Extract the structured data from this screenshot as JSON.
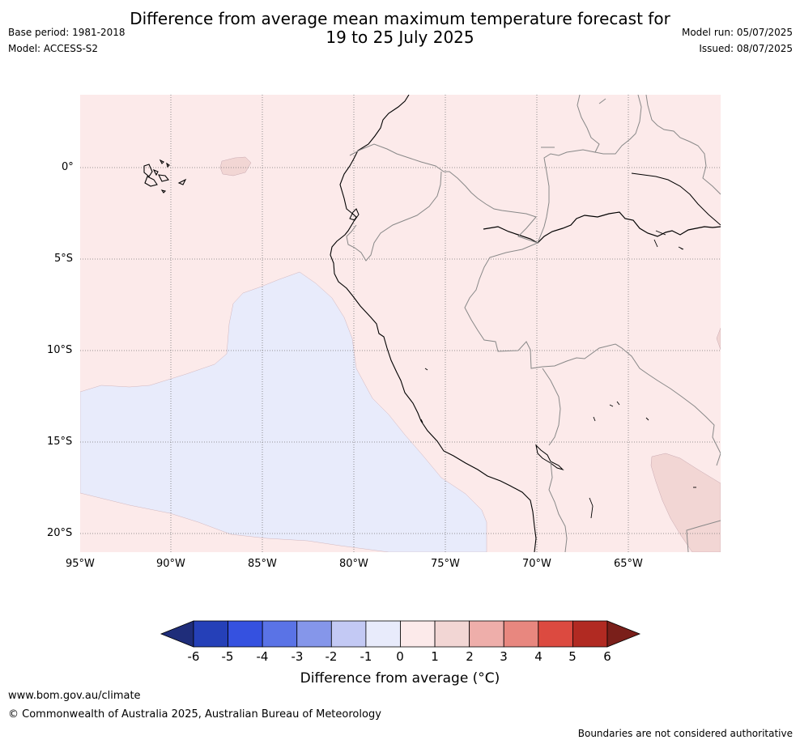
{
  "title": {
    "line1": "Difference from average mean maximum temperature forecast for",
    "line2": "19 to 25 July 2025"
  },
  "meta_left": {
    "base_period": "Base period: 1981-2018",
    "model": "Model: ACCESS-S2"
  },
  "meta_right": {
    "model_run": "Model run: 05/07/2025",
    "issued": "Issued: 08/07/2025"
  },
  "map": {
    "lat_labels": [
      "0°",
      "5°S",
      "10°S",
      "15°S",
      "20°S"
    ],
    "lon_labels": [
      "95°W",
      "90°W",
      "85°W",
      "80°W",
      "75°W",
      "70°W",
      "65°W"
    ],
    "extent": {
      "lon_min": -95,
      "lon_max": -60,
      "lat_min": -21,
      "lat_max": 4
    },
    "gridlines": true
  },
  "colorbar": {
    "ticks": [
      "-6",
      "-5",
      "-4",
      "-3",
      "-2",
      "-1",
      "0",
      "1",
      "2",
      "3",
      "4",
      "5",
      "6"
    ],
    "colors": [
      "#1f2d7a",
      "#2540b8",
      "#3551e0",
      "#5a73e6",
      "#8596ea",
      "#c3c9f4",
      "#e8ebfb",
      "#fceaea",
      "#f2d6d4",
      "#eeaeaa",
      "#e8877f",
      "#dc4a40",
      "#b12a22",
      "#7a1f1a"
    ],
    "title": "Difference from average (°C)"
  },
  "footer": {
    "url": "www.bom.gov.au/climate",
    "copyright": "© Commonwealth of Australia 2025, Australian Bureau of Meteorology",
    "note": "Boundaries are not considered authoritative"
  }
}
